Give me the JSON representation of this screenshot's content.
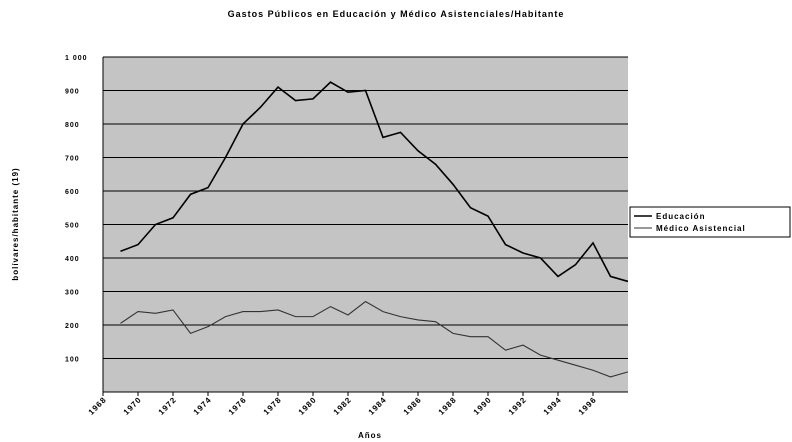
{
  "chart_data": {
    "type": "line",
    "title": "Gastos Públicos en Educación y Médico Asistenciales/Habitante",
    "x_label": "Años",
    "y_label": "bolívares/habitante (19)",
    "x": [
      1969,
      1970,
      1971,
      1972,
      1973,
      1974,
      1975,
      1976,
      1977,
      1978,
      1979,
      1980,
      1981,
      1982,
      1983,
      1984,
      1985,
      1986,
      1987,
      1988,
      1989,
      1990,
      1991,
      1992,
      1993,
      1994,
      1995,
      1996,
      1997,
      1998
    ],
    "series": [
      {
        "name": "Educación",
        "color": "#000000",
        "values": [
          420,
          440,
          500,
          520,
          590,
          610,
          700,
          800,
          850,
          910,
          870,
          875,
          925,
          895,
          900,
          760,
          775,
          720,
          680,
          620,
          550,
          525,
          440,
          415,
          400,
          345,
          380,
          445,
          345,
          330
        ]
      },
      {
        "name": "Médico Asistencial",
        "color": "#333333",
        "values": [
          205,
          240,
          235,
          245,
          175,
          195,
          225,
          240,
          240,
          245,
          225,
          225,
          255,
          230,
          270,
          240,
          225,
          215,
          210,
          175,
          165,
          165,
          125,
          140,
          110,
          95,
          80,
          65,
          45,
          60
        ]
      }
    ],
    "xlim": [
      1968,
      1998
    ],
    "xticks": [
      1968,
      1970,
      1972,
      1974,
      1976,
      1978,
      1980,
      1982,
      1984,
      1986,
      1988,
      1990,
      1992,
      1994,
      1996
    ],
    "ylim": [
      0,
      1000
    ],
    "yticks": [
      100,
      200,
      300,
      400,
      500,
      600,
      700,
      800,
      900,
      {
        "value": 1000,
        "label": "1 000"
      }
    ],
    "grid": true,
    "legend": "right"
  }
}
